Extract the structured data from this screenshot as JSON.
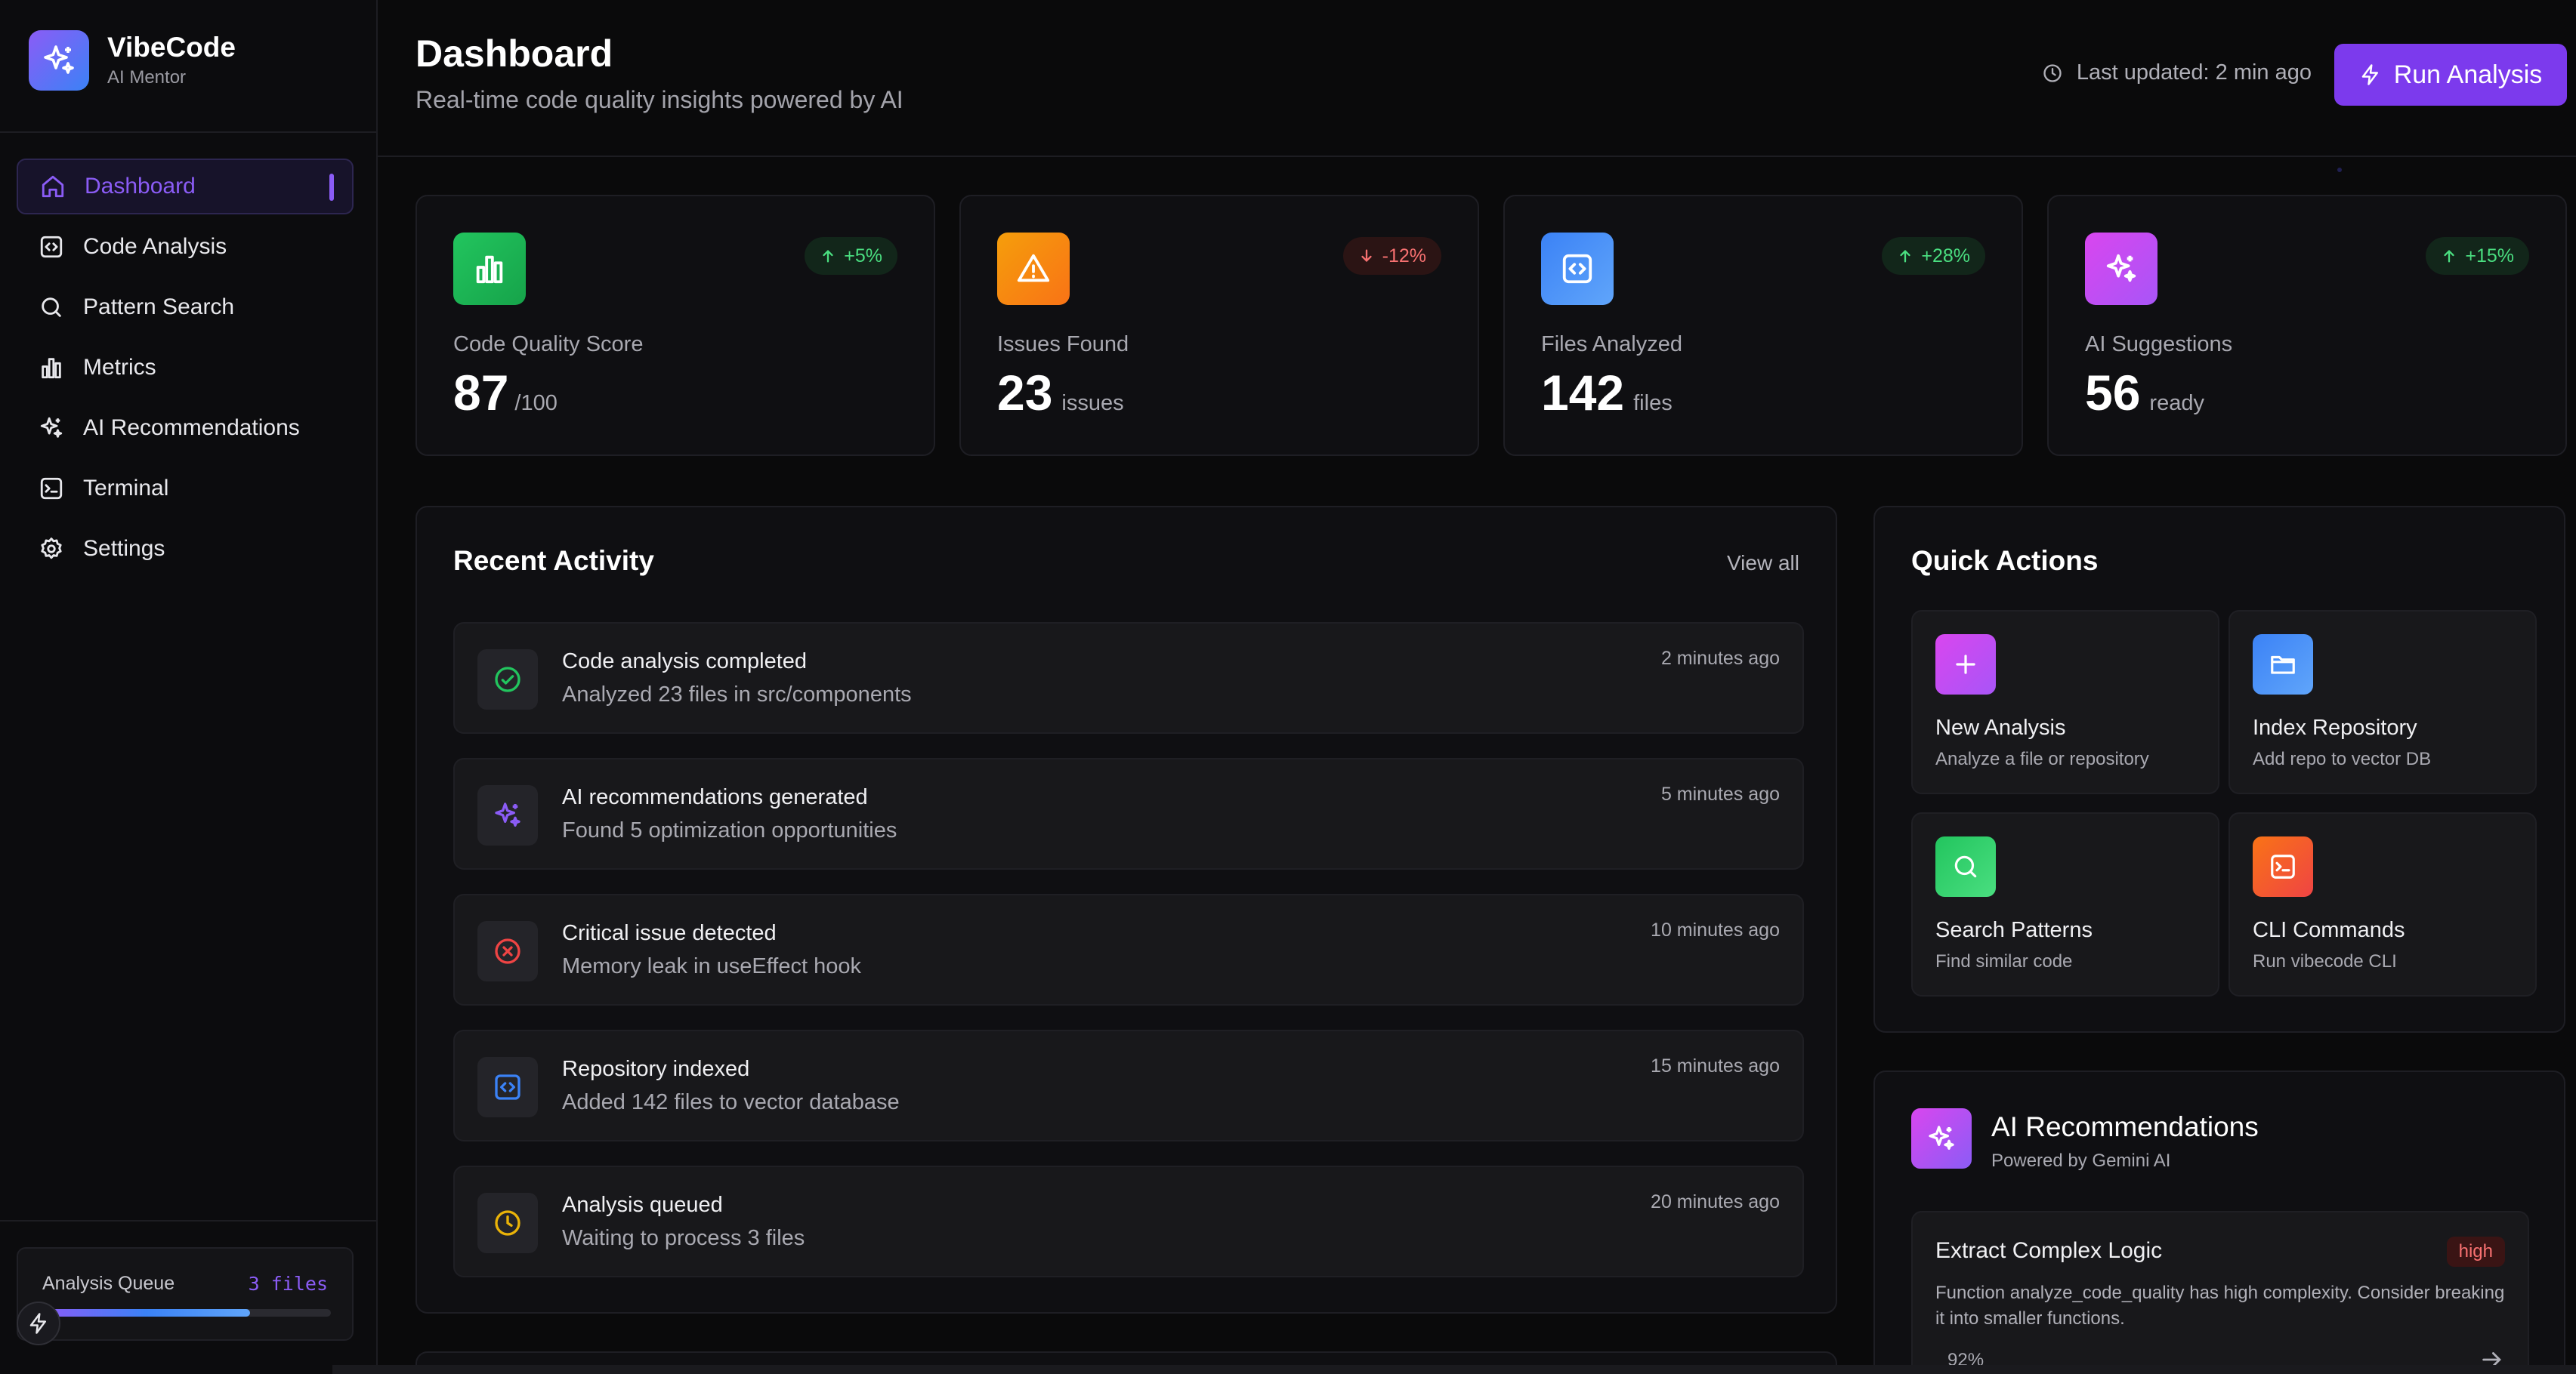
{
  "brand": {
    "name": "VibeCode",
    "subtitle": "AI Mentor"
  },
  "sidebar": {
    "items": [
      {
        "label": "Dashboard",
        "icon": "home-icon",
        "active": true
      },
      {
        "label": "Code Analysis",
        "icon": "code-icon"
      },
      {
        "label": "Pattern Search",
        "icon": "search-icon"
      },
      {
        "label": "Metrics",
        "icon": "bar-chart-icon"
      },
      {
        "label": "AI Recommendations",
        "icon": "sparkles-icon"
      },
      {
        "label": "Terminal",
        "icon": "terminal-icon"
      },
      {
        "label": "Settings",
        "icon": "gear-icon"
      }
    ],
    "queue": {
      "label": "Analysis Queue",
      "count": "3 files",
      "progress": 0.72
    }
  },
  "header": {
    "title": "Dashboard",
    "subtitle": "Real-time code quality insights powered by AI",
    "last_updated": "Last updated: 2 min ago",
    "run_button": "Run Analysis"
  },
  "stats": [
    {
      "label": "Code Quality Score",
      "value": "87",
      "unit": "/100",
      "trend": "+5%",
      "trend_dir": "up",
      "icon": "bar-chart-icon",
      "color": "#22c55e"
    },
    {
      "label": "Issues Found",
      "value": "23",
      "unit": "issues",
      "trend": "-12%",
      "trend_dir": "down",
      "icon": "warning-icon",
      "color": "#f59e0b"
    },
    {
      "label": "Files Analyzed",
      "value": "142",
      "unit": "files",
      "trend": "+28%",
      "trend_dir": "up",
      "icon": "code-file-icon",
      "color": "#3b82f6"
    },
    {
      "label": "AI Suggestions",
      "value": "56",
      "unit": "ready",
      "trend": "+15%",
      "trend_dir": "up",
      "icon": "sparkles-icon",
      "color": "#c026d3"
    }
  ],
  "activity": {
    "title": "Recent Activity",
    "view_all": "View all",
    "items": [
      {
        "title": "Code analysis completed",
        "desc": "Analyzed 23 files in src/components",
        "time": "2 minutes ago",
        "icon": "check-circle-icon",
        "color": "#22c55e"
      },
      {
        "title": "AI recommendations generated",
        "desc": "Found 5 optimization opportunities",
        "time": "5 minutes ago",
        "icon": "sparkles-icon",
        "color": "#8b5cf6"
      },
      {
        "title": "Critical issue detected",
        "desc": "Memory leak in useEffect hook",
        "time": "10 minutes ago",
        "icon": "x-circle-icon",
        "color": "#ef4444"
      },
      {
        "title": "Repository indexed",
        "desc": "Added 142 files to vector database",
        "time": "15 minutes ago",
        "icon": "code-icon",
        "color": "#3b82f6"
      },
      {
        "title": "Analysis queued",
        "desc": "Waiting to process 3 files",
        "time": "20 minutes ago",
        "icon": "clock-icon",
        "color": "#eab308"
      }
    ]
  },
  "quick_actions": {
    "title": "Quick Actions",
    "items": [
      {
        "title": "New Analysis",
        "desc": "Analyze a file or repository",
        "icon": "plus-icon",
        "color": "#c026d3"
      },
      {
        "title": "Index Repository",
        "desc": "Add repo to vector DB",
        "icon": "folder-icon",
        "color": "#3b82f6"
      },
      {
        "title": "Search Patterns",
        "desc": "Find similar code",
        "icon": "search-icon",
        "color": "#22c55e"
      },
      {
        "title": "CLI Commands",
        "desc": "Run vibecode CLI",
        "icon": "terminal-icon",
        "color": "#f97316"
      }
    ]
  },
  "recommendations": {
    "title": "AI Recommendations",
    "subtitle": "Powered by Gemini AI",
    "items": [
      {
        "title": "Extract Complex Logic",
        "badge": "high",
        "desc": "Function analyze_code_quality has high complexity. Consider breaking it into smaller functions.",
        "score": "92%"
      }
    ]
  }
}
